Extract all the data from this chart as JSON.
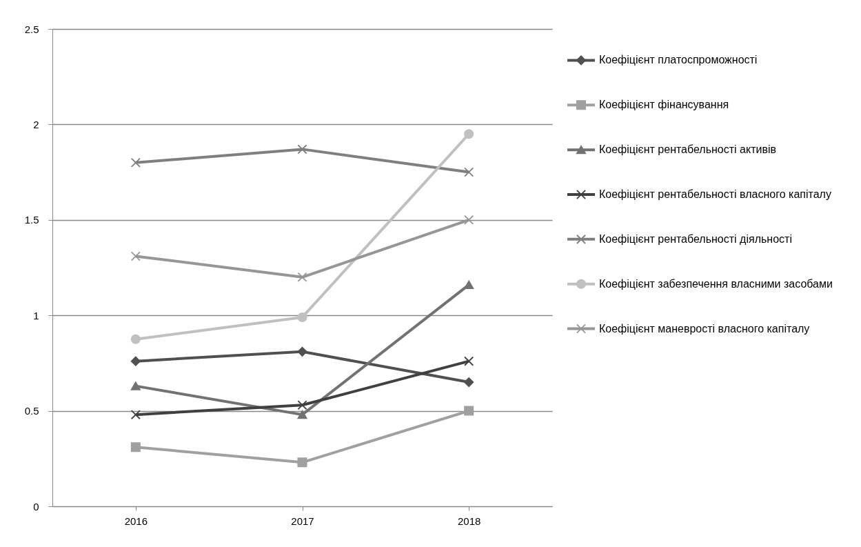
{
  "chart_data": {
    "type": "line",
    "categories": [
      "2016",
      "2017",
      "2018"
    ],
    "ylim": [
      0,
      2.5
    ],
    "yticks": [
      0,
      0.5,
      1,
      1.5,
      2,
      2.5
    ],
    "grid": "y",
    "legend": "right",
    "line_style": "solid",
    "series": [
      {
        "name": "Коефіцієнт платоспроможності",
        "color": "#505050",
        "marker": "diamond",
        "values": [
          0.76,
          0.81,
          0.65
        ]
      },
      {
        "name": "Коефіцієнт фінансування",
        "color": "#a0a0a0",
        "marker": "square",
        "values": [
          0.31,
          0.23,
          0.5
        ]
      },
      {
        "name": "Коефіцієнт рентабельності активів",
        "color": "#727272",
        "marker": "triangle",
        "values": [
          0.63,
          0.48,
          1.16
        ]
      },
      {
        "name": "Коефіцієнт рентабельності власного капіталу",
        "color": "#404040",
        "marker": "cross",
        "values": [
          0.48,
          0.53,
          0.76
        ]
      },
      {
        "name": "Коефіцієнт рентабельності діяльності",
        "color": "#7f7f7f",
        "marker": "cross",
        "values": [
          1.8,
          1.87,
          1.75
        ]
      },
      {
        "name": "Коефіцієнт забезпечення власними засобами",
        "color": "#c0c0c0",
        "marker": "circle",
        "values": [
          0.875,
          0.99,
          1.95
        ]
      },
      {
        "name": "Коефіцієнт маневрості власного капіталу",
        "color": "#969696",
        "marker": "cross",
        "values": [
          1.31,
          1.2,
          1.5
        ]
      }
    ]
  }
}
